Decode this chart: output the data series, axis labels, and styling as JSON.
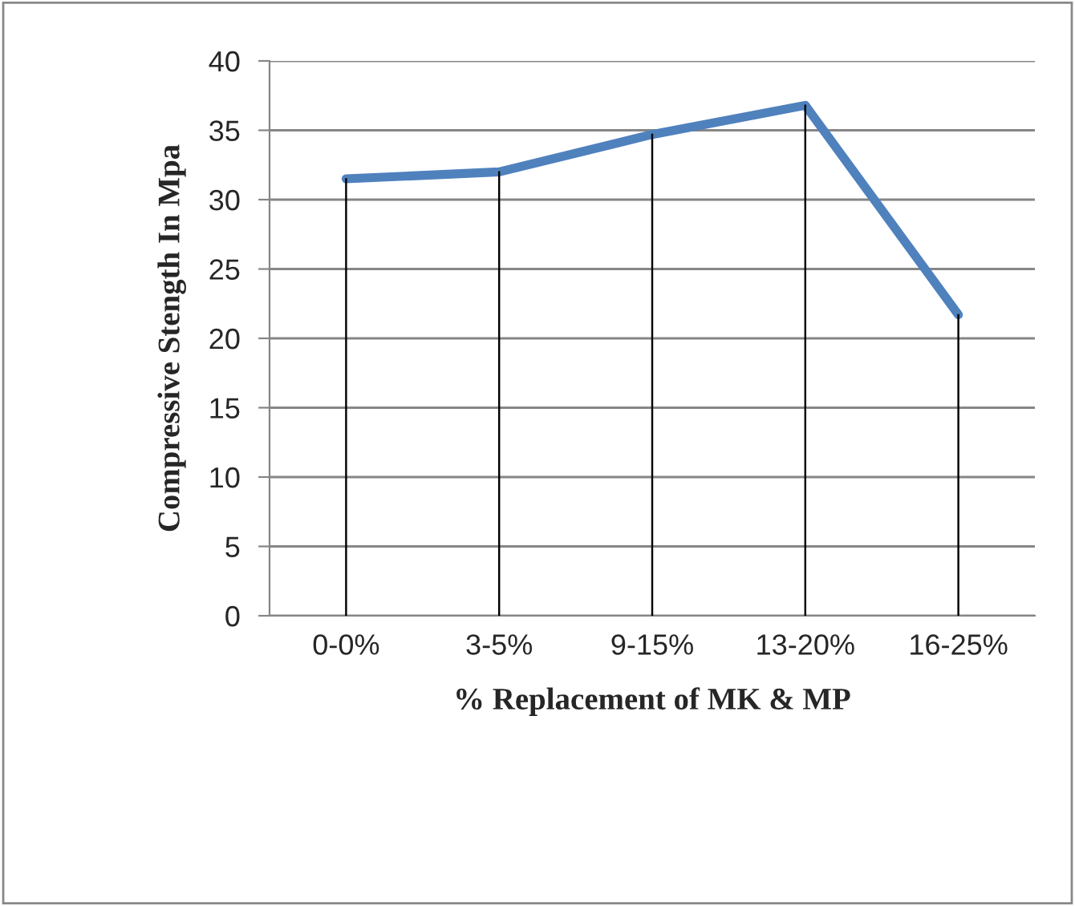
{
  "chart_data": {
    "type": "line",
    "xlabel": "% Replacement of MK & MP",
    "ylabel": "Compressive Stength In Mpa",
    "categories": [
      "0-0%",
      "3-5%",
      "9-15%",
      "13-20%",
      "16-25%"
    ],
    "series": [
      {
        "type": "bar",
        "color": "#000000",
        "values": [
          31.5,
          32,
          34.7,
          36.8,
          21.7
        ]
      },
      {
        "color": "#4f81bd",
        "values": [
          31.5,
          32,
          34.7,
          36.8,
          21.7
        ]
      }
    ],
    "ylim": [
      0,
      40
    ],
    "yticks": [
      0,
      5,
      10,
      15,
      20,
      25,
      30,
      35,
      40
    ],
    "grid": "y",
    "legend": false,
    "marker": "none",
    "line_style": "solid"
  }
}
